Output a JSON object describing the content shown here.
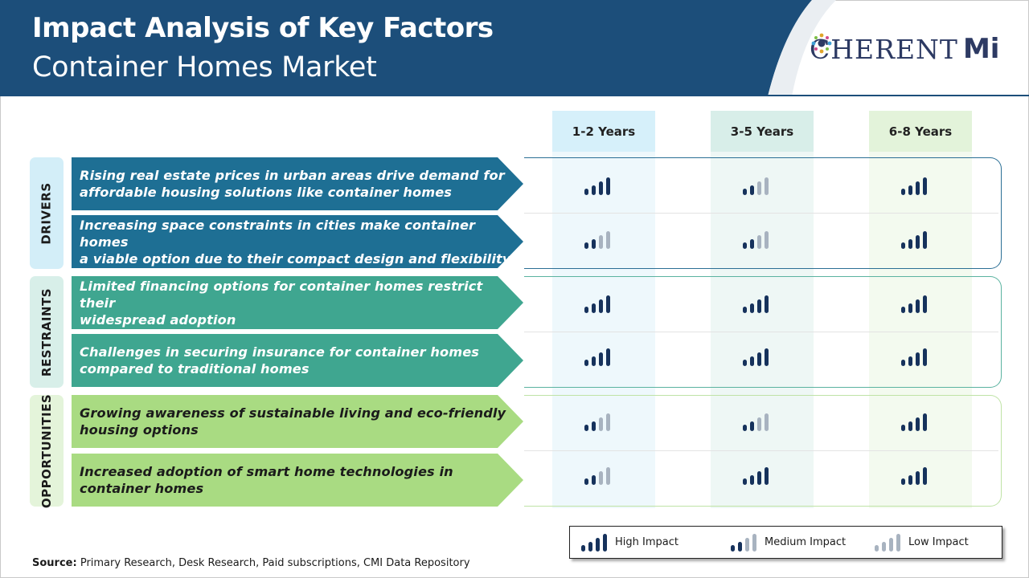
{
  "header": {
    "title": "Impact Analysis of Key Factors",
    "subtitle": "Container Homes Market",
    "logo_text": "C",
    "logo_text_rest": "HERENT",
    "logo_mi": "Mi"
  },
  "columns": [
    "1-2 Years",
    "3-5 Years",
    "6-8 Years"
  ],
  "sections": [
    {
      "label": "DRIVERS",
      "rows": [
        {
          "text_line1": "Rising real estate prices in urban areas drive demand for",
          "text_line2": "affordable housing solutions like container homes",
          "impact": [
            "high",
            "medium",
            "high"
          ]
        },
        {
          "text_line1": "Increasing space constraints in cities make container homes",
          "text_line2": "a viable option due to their compact design and flexibility",
          "impact": [
            "medium",
            "medium",
            "high"
          ]
        }
      ]
    },
    {
      "label": "RESTRAINTS",
      "rows": [
        {
          "text_line1": "Limited financing options for container homes restrict their",
          "text_line2": "widespread adoption",
          "impact": [
            "high",
            "high",
            "high"
          ]
        },
        {
          "text_line1": "Challenges in securing insurance for container homes",
          "text_line2": "compared to traditional homes",
          "impact": [
            "high",
            "high",
            "high"
          ]
        }
      ]
    },
    {
      "label": "OPPORTUNITIES",
      "rows": [
        {
          "text_line1": "Growing awareness of sustainable living and eco-friendly",
          "text_line2": "housing options",
          "impact": [
            "medium",
            "medium",
            "high"
          ]
        },
        {
          "text_line1": "Increased adoption of smart home technologies in",
          "text_line2": "container homes",
          "impact": [
            "medium",
            "high",
            "high"
          ]
        }
      ]
    }
  ],
  "legend": {
    "high": "High Impact",
    "medium": "Medium Impact",
    "low": "Low Impact"
  },
  "source": {
    "label": "Source:",
    "text": "Primary Research, Desk Research, Paid subscriptions, CMI Data Repository"
  },
  "colors": {
    "header_bg": "#1c4e7a",
    "dark_bar": "#16325c",
    "light_bar": "#a8b3c0",
    "drivers_arrow": "#1e6f94",
    "restraints_arrow": "#3fa690",
    "opportunities_arrow": "#a9db82"
  }
}
